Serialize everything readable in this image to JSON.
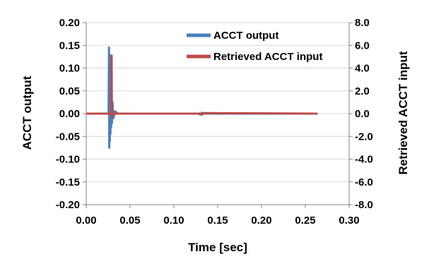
{
  "chart_data": {
    "type": "line",
    "title": "",
    "xlabel": "Time [sec]",
    "ylabel_left": "ACCT output",
    "ylabel_right": "Retrieved ACCT input",
    "xlim": [
      0,
      0.3
    ],
    "ylim_left": [
      -0.2,
      0.2
    ],
    "ylim_right": [
      -8.0,
      8.0
    ],
    "x_ticks": [
      "0.00",
      "0.05",
      "0.10",
      "0.15",
      "0.20",
      "0.25",
      "0.30"
    ],
    "y_left_ticks": [
      "0.20",
      "0.15",
      "0.10",
      "0.05",
      "0.00",
      "-0.05",
      "-0.10",
      "-0.15",
      "-0.20"
    ],
    "y_right_ticks": [
      "8.0",
      "6.0",
      "4.0",
      "2.0",
      "0.0",
      "-2.0",
      "-4.0",
      "-6.0",
      "-8.0"
    ],
    "grid": "horizontal",
    "legend_position": "top-right",
    "series": [
      {
        "name": "ACCT output",
        "axis": "left",
        "color": "#4a7ebb",
        "x": [
          0.0,
          0.0255,
          0.026,
          0.0263,
          0.0266,
          0.0269,
          0.0272,
          0.0276,
          0.028,
          0.0284,
          0.0288,
          0.0294,
          0.03,
          0.031,
          0.033,
          0.036,
          0.05,
          0.1,
          0.128,
          0.13,
          0.132,
          0.134,
          0.26
        ],
        "y": [
          0.0,
          0.0,
          0.145,
          -0.075,
          0.13,
          -0.06,
          0.1,
          -0.045,
          0.07,
          -0.03,
          0.045,
          -0.02,
          0.025,
          -0.01,
          0.005,
          0.0,
          0.0,
          0.0,
          0.0,
          -0.002,
          0.002,
          0.0,
          0.0
        ]
      },
      {
        "name": "Retrieved ACCT input",
        "axis": "right",
        "color": "#be4b48",
        "x": [
          0.0,
          0.0285,
          0.029,
          0.0293,
          0.0296,
          0.03,
          0.031,
          0.05,
          0.1,
          0.13,
          0.132,
          0.134,
          0.264
        ],
        "y": [
          0.0,
          0.0,
          5.1,
          -0.3,
          0.2,
          0.0,
          0.0,
          0.0,
          0.0,
          0.0,
          -0.1,
          0.05,
          0.0
        ]
      }
    ]
  }
}
